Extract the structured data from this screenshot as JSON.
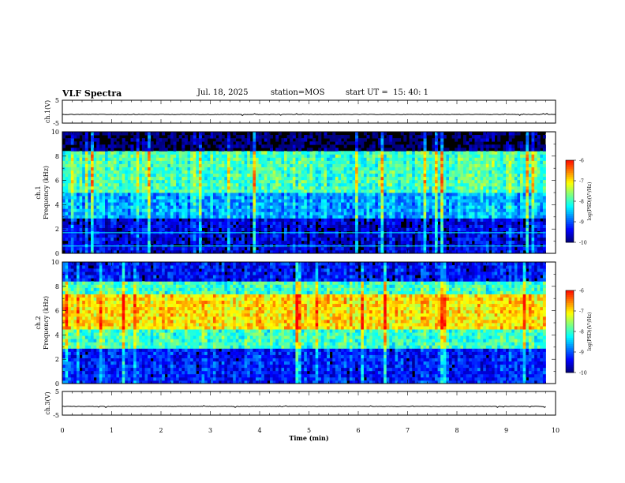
{
  "header": {
    "title": "VLF Spectra",
    "date": "Jul. 18, 2025",
    "station": "station=MOS",
    "start": "start UT =  15: 40: 1"
  },
  "chart_data": [
    {
      "type": "line",
      "name": "ch1-waveform",
      "ylabel": "ch.1(V)",
      "ylim": [
        -5,
        5
      ],
      "yticks": [
        "5",
        "-5"
      ],
      "x_range": [
        0,
        10
      ],
      "series_level": -1.2
    },
    {
      "type": "heatmap",
      "name": "ch1-spectrogram",
      "ylabel": "ch.1\nFrequency (kHz)",
      "ylim": [
        0,
        10
      ],
      "yticks": [
        "0",
        "2",
        "4",
        "6",
        "8",
        "10"
      ],
      "x_range": [
        0,
        9.8
      ],
      "colorbar": {
        "label": "log(PSD)(V²/Hz)",
        "range": [
          -10,
          -6
        ],
        "ticks": [
          "-6",
          "-7",
          "-8",
          "-9",
          "-10"
        ]
      },
      "bands": [
        {
          "freq_range_khz": [
            5,
            8.5
          ],
          "log_psd": -8
        },
        {
          "freq_range_khz": [
            3,
            5
          ],
          "log_psd": -8.7
        },
        {
          "freq_range_khz": [
            0,
            3
          ],
          "log_psd": -9.6
        }
      ],
      "lines_khz": [
        1.7,
        0.6
      ]
    },
    {
      "type": "heatmap",
      "name": "ch2-spectrogram",
      "ylabel": "ch.2\nFrequency (kHz)",
      "ylim": [
        0,
        10
      ],
      "yticks": [
        "0",
        "2",
        "4",
        "6",
        "8",
        "10"
      ],
      "x_range": [
        0,
        9.8
      ],
      "colorbar": {
        "label": "log(PSD)(V²/Hz)",
        "range": [
          -10,
          -6
        ],
        "ticks": [
          "-6",
          "-7",
          "-8",
          "-9",
          "-10"
        ]
      },
      "bands": [
        {
          "freq_range_khz": [
            4.5,
            7.5
          ],
          "log_psd": -7
        },
        {
          "freq_range_khz": [
            3,
            4.5
          ],
          "log_psd": -8
        },
        {
          "freq_range_khz": [
            7.5,
            8.5
          ],
          "log_psd": -8
        },
        {
          "freq_range_khz": [
            0,
            3
          ],
          "log_psd": -9.3
        },
        {
          "freq_range_khz": [
            8.5,
            10
          ],
          "log_psd": -9.4
        }
      ]
    },
    {
      "type": "line",
      "name": "ch3-waveform",
      "ylabel": "ch.3(V)",
      "ylim": [
        -5,
        5
      ],
      "yticks": [
        "5",
        "-5"
      ],
      "x_range": [
        0,
        9.8
      ],
      "series_level": -1.3
    }
  ],
  "xaxis": {
    "label": "Time (min)",
    "ticks": [
      "0",
      "1",
      "2",
      "3",
      "4",
      "5",
      "6",
      "7",
      "8",
      "9",
      "10"
    ],
    "range": [
      0,
      10
    ]
  },
  "colors": {
    "colormap": [
      "#00007f",
      "#0000ff",
      "#007fff",
      "#00ffff",
      "#7fff7f",
      "#ffff00",
      "#ff7f00",
      "#ff0000",
      "#ffffff"
    ],
    "background": "#000000",
    "line": "#000000"
  }
}
